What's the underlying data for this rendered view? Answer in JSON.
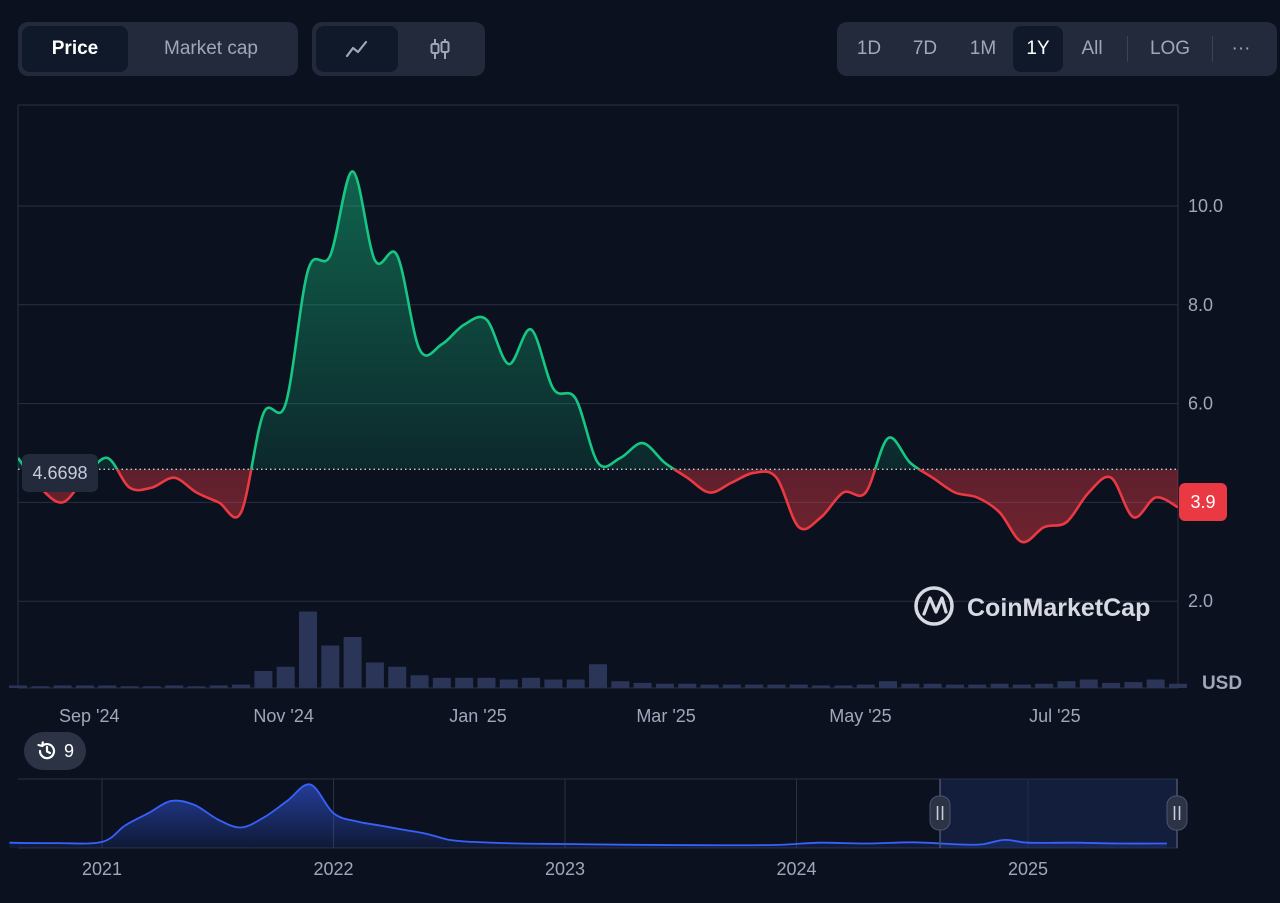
{
  "toolbar": {
    "metric_tabs": [
      "Price",
      "Market cap"
    ],
    "active_metric": "Price",
    "chart_style_icons": [
      "line-chart-icon",
      "candlestick-icon"
    ],
    "active_style": "line-chart-icon",
    "ranges": [
      "1D",
      "7D",
      "1M",
      "1Y",
      "All"
    ],
    "active_range": "1Y",
    "log_label": "LOG",
    "more_label": "···"
  },
  "watermark": "CoinMarketCap",
  "currency_label": "USD",
  "history_badge": {
    "icon": "history-icon",
    "count": "9"
  },
  "colors": {
    "up": "#16c784",
    "down": "#ea3943",
    "background": "#0b111f",
    "navigator": "#3861fb"
  },
  "chart_data": [
    {
      "type": "line",
      "baseline": 4.6698,
      "baseline_label": "4.6698",
      "current_value": 3.9,
      "current_label": "3.9",
      "yticks": [
        "2.0",
        "4.0",
        "6.0",
        "8.0",
        "10.0"
      ],
      "yticks_visible": [
        "2.0",
        "6.0",
        "8.0",
        "10.0"
      ],
      "xticks": [
        "Sep '24",
        "Nov '24",
        "Jan '25",
        "Mar '25",
        "May '25",
        "Jul '25"
      ],
      "ylim": [
        0,
        12
      ],
      "x": [
        "2024-08-20",
        "2024-08-27",
        "2024-09-03",
        "2024-09-10",
        "2024-09-17",
        "2024-09-24",
        "2024-10-01",
        "2024-10-08",
        "2024-10-15",
        "2024-10-22",
        "2024-10-29",
        "2024-11-05",
        "2024-11-12",
        "2024-11-19",
        "2024-11-26",
        "2024-12-03",
        "2024-12-10",
        "2024-12-17",
        "2024-12-24",
        "2024-12-31",
        "2025-01-07",
        "2025-01-14",
        "2025-01-21",
        "2025-01-28",
        "2025-02-04",
        "2025-02-11",
        "2025-02-18",
        "2025-02-25",
        "2025-03-04",
        "2025-03-11",
        "2025-03-18",
        "2025-03-25",
        "2025-04-01",
        "2025-04-08",
        "2025-04-15",
        "2025-04-22",
        "2025-04-29",
        "2025-05-06",
        "2025-05-13",
        "2025-05-20",
        "2025-05-27",
        "2025-06-03",
        "2025-06-10",
        "2025-06-17",
        "2025-06-24",
        "2025-07-01",
        "2025-07-08",
        "2025-07-15",
        "2025-07-22",
        "2025-07-29",
        "2025-08-05",
        "2025-08-12",
        "2025-08-19"
      ],
      "y": [
        4.9,
        4.3,
        4.0,
        4.5,
        4.9,
        4.3,
        4.3,
        4.5,
        4.2,
        4.0,
        3.8,
        5.8,
        6.0,
        8.7,
        9.0,
        10.7,
        8.9,
        9.0,
        7.1,
        7.2,
        7.6,
        7.7,
        6.8,
        7.5,
        6.3,
        6.1,
        4.8,
        4.9,
        5.2,
        4.8,
        4.5,
        4.2,
        4.4,
        4.6,
        4.5,
        3.5,
        3.7,
        4.2,
        4.2,
        5.3,
        4.8,
        4.5,
        4.2,
        4.1,
        3.8,
        3.2,
        3.5,
        3.6,
        4.2,
        4.5,
        3.7,
        4.1,
        3.9
      ],
      "volume": [
        0.03,
        0.02,
        0.03,
        0.03,
        0.03,
        0.02,
        0.02,
        0.03,
        0.02,
        0.03,
        0.04,
        0.2,
        0.25,
        0.9,
        0.5,
        0.6,
        0.3,
        0.25,
        0.15,
        0.12,
        0.12,
        0.12,
        0.1,
        0.12,
        0.1,
        0.1,
        0.28,
        0.08,
        0.06,
        0.05,
        0.05,
        0.04,
        0.04,
        0.04,
        0.04,
        0.04,
        0.03,
        0.03,
        0.04,
        0.08,
        0.05,
        0.05,
        0.04,
        0.04,
        0.05,
        0.04,
        0.05,
        0.08,
        0.1,
        0.06,
        0.07,
        0.1,
        0.05
      ]
    },
    {
      "type": "area",
      "role": "navigator",
      "xticks": [
        "2021",
        "2022",
        "2023",
        "2024",
        "2025"
      ],
      "x": [
        2020.6,
        2020.8,
        2021.0,
        2021.1,
        2021.2,
        2021.3,
        2021.4,
        2021.5,
        2021.6,
        2021.7,
        2021.8,
        2021.9,
        2022.0,
        2022.1,
        2022.2,
        2022.3,
        2022.4,
        2022.5,
        2022.6,
        2022.8,
        2023.0,
        2023.3,
        2023.6,
        2023.9,
        2024.1,
        2024.3,
        2024.5,
        2024.7,
        2024.8,
        2024.9,
        2025.0,
        2025.2,
        2025.4,
        2025.6
      ],
      "y": [
        0.8,
        0.7,
        1.0,
        5.0,
        8.0,
        11.0,
        10.0,
        6.5,
        4.5,
        7.0,
        11.0,
        15.0,
        8.0,
        6.0,
        5.0,
        4.0,
        3.0,
        1.5,
        1.0,
        0.6,
        0.5,
        0.3,
        0.2,
        0.25,
        0.8,
        0.6,
        0.9,
        0.4,
        0.4,
        1.5,
        0.8,
        0.8,
        0.6,
        0.6
      ],
      "selection": [
        "2024-08",
        "2025-08"
      ]
    }
  ]
}
